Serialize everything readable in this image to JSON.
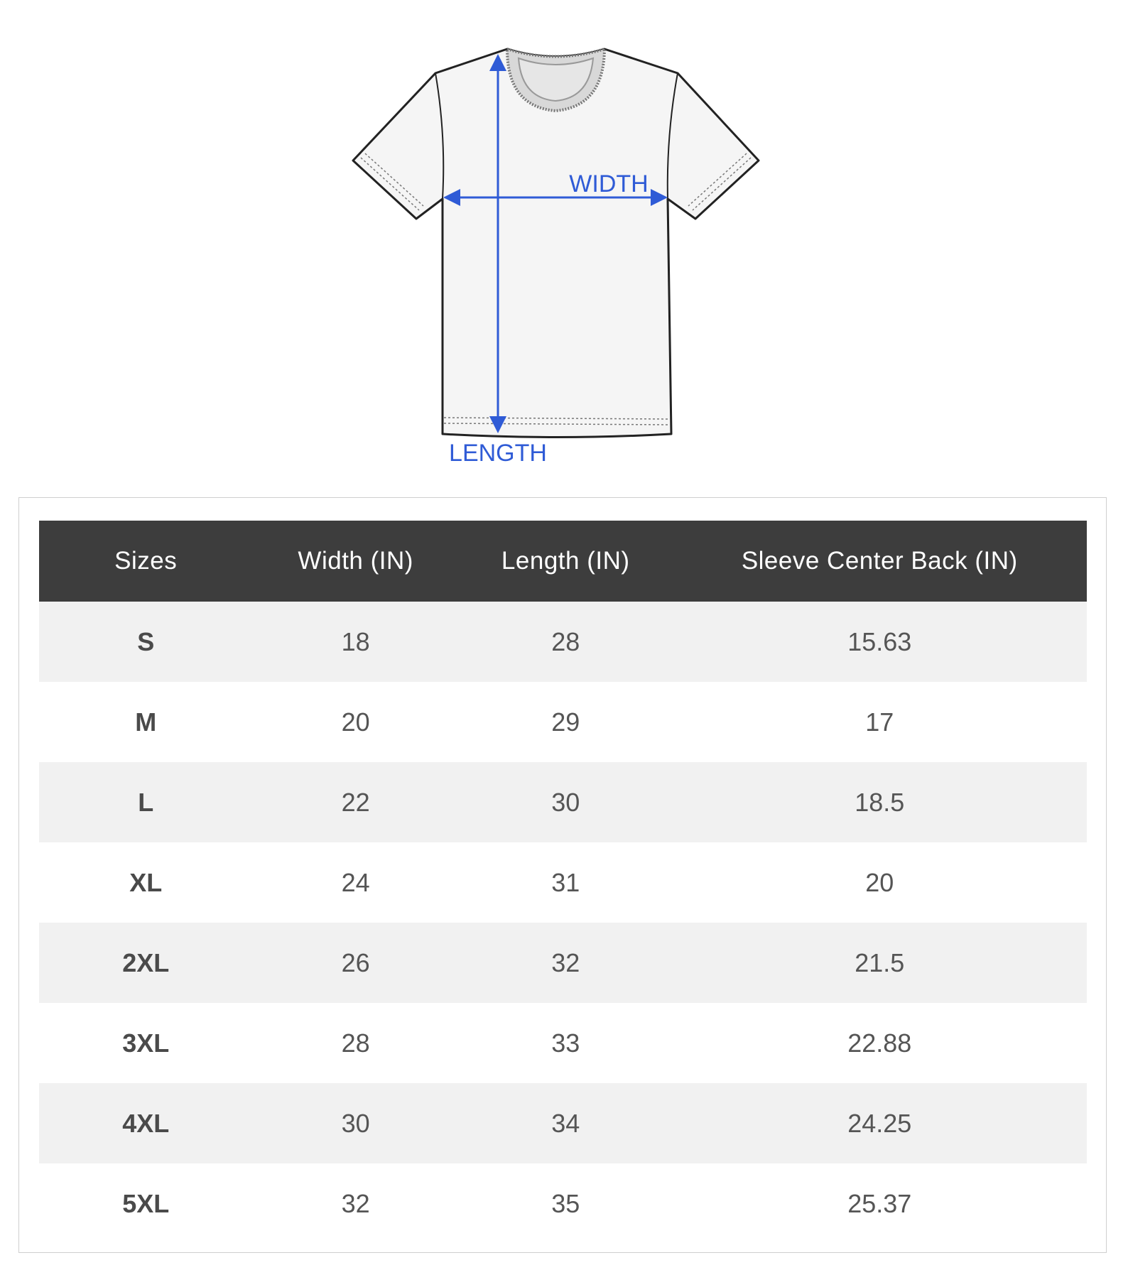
{
  "diagram": {
    "width_label": "WIDTH",
    "length_label": "LENGTH",
    "accent_color": "#2f5bd6"
  },
  "table": {
    "headers": [
      "Sizes",
      "Width (IN)",
      "Length (IN)",
      "Sleeve Center Back (IN)"
    ],
    "rows": [
      [
        "S",
        "18",
        "28",
        "15.63"
      ],
      [
        "M",
        "20",
        "29",
        "17"
      ],
      [
        "L",
        "22",
        "30",
        "18.5"
      ],
      [
        "XL",
        "24",
        "31",
        "20"
      ],
      [
        "2XL",
        "26",
        "32",
        "21.5"
      ],
      [
        "3XL",
        "28",
        "33",
        "22.88"
      ],
      [
        "4XL",
        "30",
        "34",
        "24.25"
      ],
      [
        "5XL",
        "32",
        "35",
        "25.37"
      ]
    ]
  }
}
